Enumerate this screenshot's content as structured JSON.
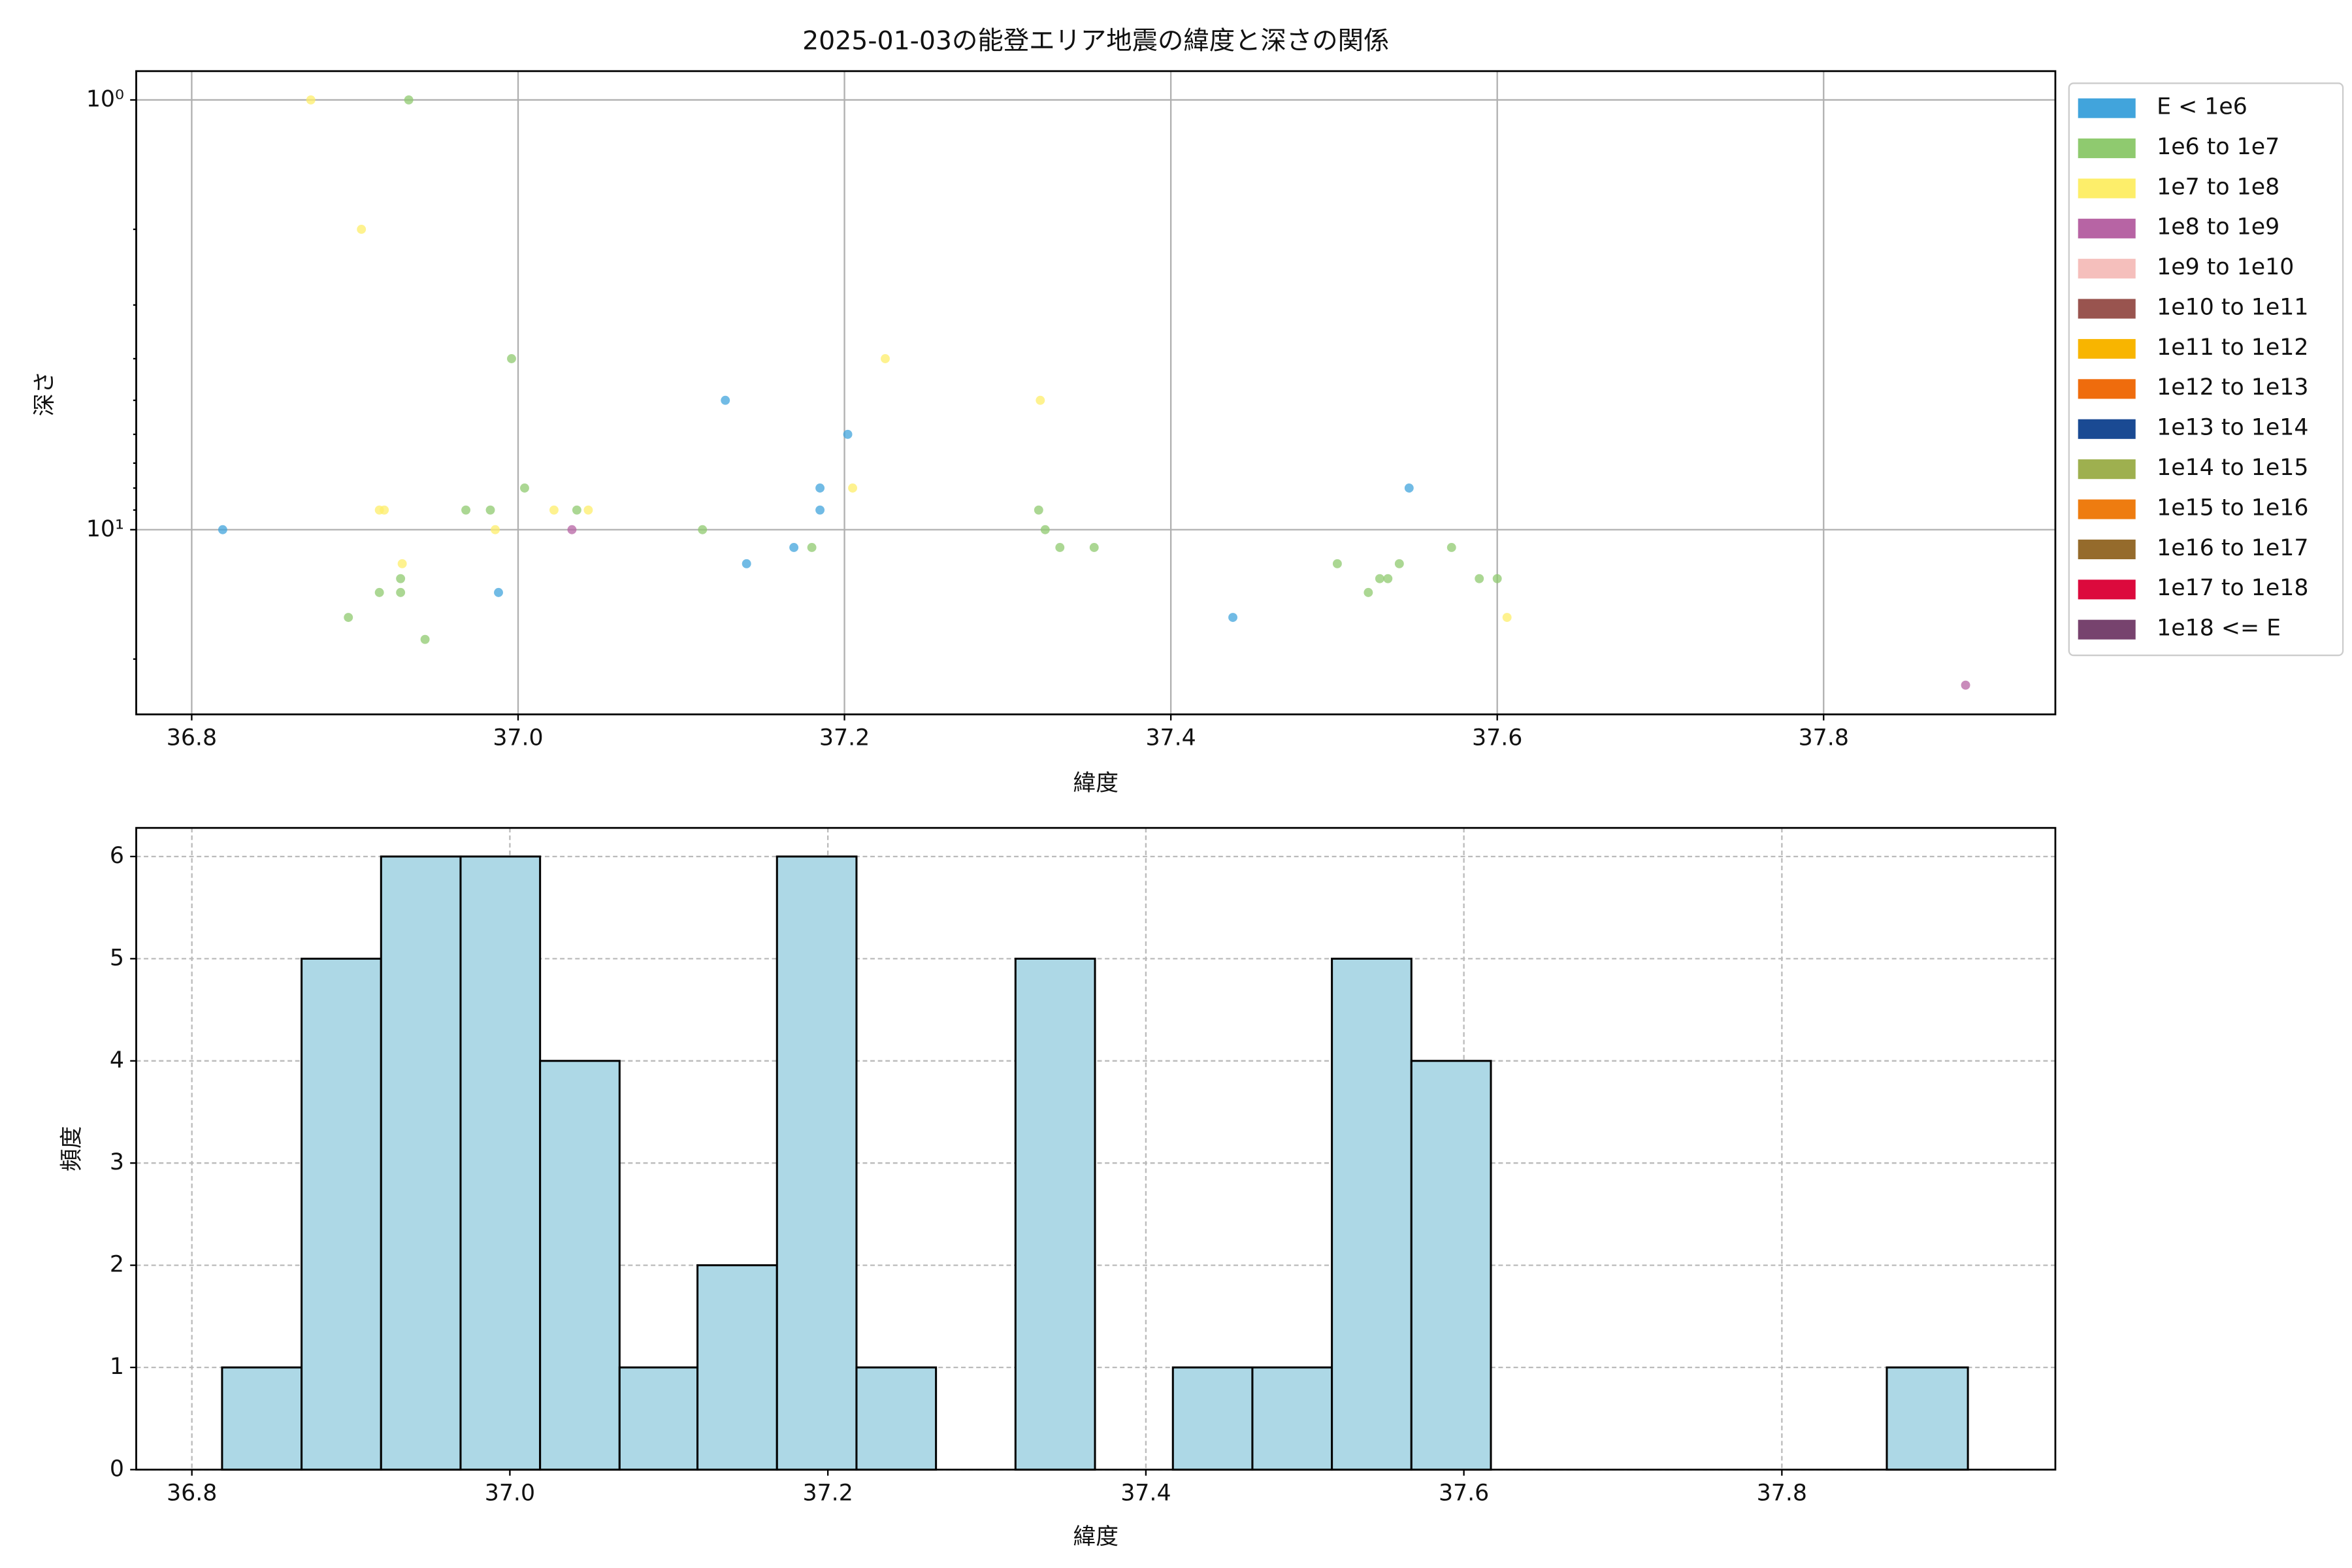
{
  "chart_data": [
    {
      "type": "scatter",
      "title": "2025-01-03の能登エリア地震の緯度と深さの関係",
      "x_label": "緯度",
      "y_label": "深さ",
      "xlim": [
        36.766,
        37.942
      ],
      "xticks": [
        36.8,
        {
          "value": 37,
          "label": "37.0"
        },
        37.2,
        37.4,
        37.6,
        37.8
      ],
      "yscale": "log",
      "yinvert": true,
      "ylim": [
        0.857,
        26.9
      ],
      "yticks": [
        {
          "value": 1,
          "label": "10⁰"
        },
        {
          "value": 10,
          "label": "10¹"
        }
      ],
      "yminorticks": [
        2,
        3,
        4,
        5,
        6,
        7,
        8,
        9,
        20
      ],
      "grid": true,
      "grid_linestyle": "solid",
      "legend": "outside upper right",
      "series": [
        {
          "name": "E < 1e6",
          "color": "#41a4dc",
          "x": [
            36.819,
            36.988,
            37.127,
            37.14,
            37.169,
            37.185,
            37.185,
            37.202,
            37.438,
            37.546
          ],
          "values": [
            10,
            14,
            5,
            12,
            11,
            8,
            9,
            6,
            16,
            8
          ]
        },
        {
          "name": "1e6 to 1e7",
          "color": "#8fca6f",
          "x": [
            36.933,
            36.996,
            36.968,
            36.983,
            37.004,
            37.036,
            36.896,
            36.915,
            36.928,
            36.928,
            36.943,
            37.113,
            37.18,
            37.319,
            37.323,
            37.332,
            37.353,
            37.502,
            37.521,
            37.528,
            37.533,
            37.54,
            37.572,
            37.589,
            37.6
          ],
          "values": [
            1,
            4,
            9,
            9,
            8,
            9,
            16,
            14,
            13,
            14,
            18,
            10,
            11,
            9,
            10,
            11,
            11,
            12,
            14,
            13,
            13,
            12,
            11,
            13,
            13
          ]
        },
        {
          "name": "1e7 to 1e8",
          "color": "#fdee6a",
          "x": [
            36.873,
            36.904,
            36.915,
            36.918,
            36.929,
            36.986,
            37.022,
            37.043,
            37.205,
            37.225,
            37.32,
            37.606
          ],
          "values": [
            1,
            2,
            9,
            9,
            12,
            10,
            9,
            9,
            8,
            4,
            5,
            16
          ]
        },
        {
          "name": "1e8 to 1e9",
          "color": "#b764a4",
          "x": [
            37.033,
            37.887
          ],
          "values": [
            10,
            23
          ]
        },
        {
          "name": "1e9 to 1e10",
          "color": "#f5bfbc",
          "x": [],
          "values": []
        },
        {
          "name": "1e10 to 1e11",
          "color": "#99544f",
          "x": [],
          "values": []
        },
        {
          "name": "1e11 to 1e12",
          "color": "#f8b500",
          "x": [],
          "values": []
        },
        {
          "name": "1e12 to 1e13",
          "color": "#ef6c0d",
          "x": [],
          "values": []
        },
        {
          "name": "1e13 to 1e14",
          "color": "#1a4a93",
          "x": [],
          "values": []
        },
        {
          "name": "1e14 to 1e15",
          "color": "#9eb04f",
          "x": [],
          "values": []
        },
        {
          "name": "1e15 to 1e16",
          "color": "#ee7c10",
          "x": [],
          "values": []
        },
        {
          "name": "1e16 to 1e17",
          "color": "#956b2c",
          "x": [],
          "values": []
        },
        {
          "name": "1e17 to 1e18",
          "color": "#dc0a3d",
          "x": [],
          "values": []
        },
        {
          "name": "1e18 <= E",
          "color": "#77436e",
          "x": [],
          "values": []
        }
      ]
    },
    {
      "type": "histogram",
      "x_label": "緯度",
      "y_label": "頻度",
      "xlim": [
        36.765,
        37.972
      ],
      "xticks": [
        36.8,
        {
          "value": 37,
          "label": "37.0"
        },
        37.2,
        37.4,
        37.6,
        37.8
      ],
      "ylim": [
        0,
        6.28
      ],
      "yticks": [
        0,
        1,
        2,
        3,
        4,
        5,
        6
      ],
      "grid": true,
      "grid_linestyle": "dashed",
      "color": "#add8e6",
      "edgecolor": "#000000",
      "bins": [
        36.819,
        36.869,
        36.919,
        36.969,
        37.019,
        37.069,
        37.118,
        37.168,
        37.218,
        37.268,
        37.318,
        37.368,
        37.417,
        37.467,
        37.517,
        37.567,
        37.617,
        37.667,
        37.716,
        37.766,
        37.816,
        37.866,
        37.917
      ],
      "values": [
        1,
        5,
        6,
        6,
        4,
        1,
        2,
        6,
        1,
        0,
        5,
        0,
        1,
        1,
        5,
        4,
        0,
        0,
        0,
        0,
        0,
        1
      ]
    }
  ]
}
